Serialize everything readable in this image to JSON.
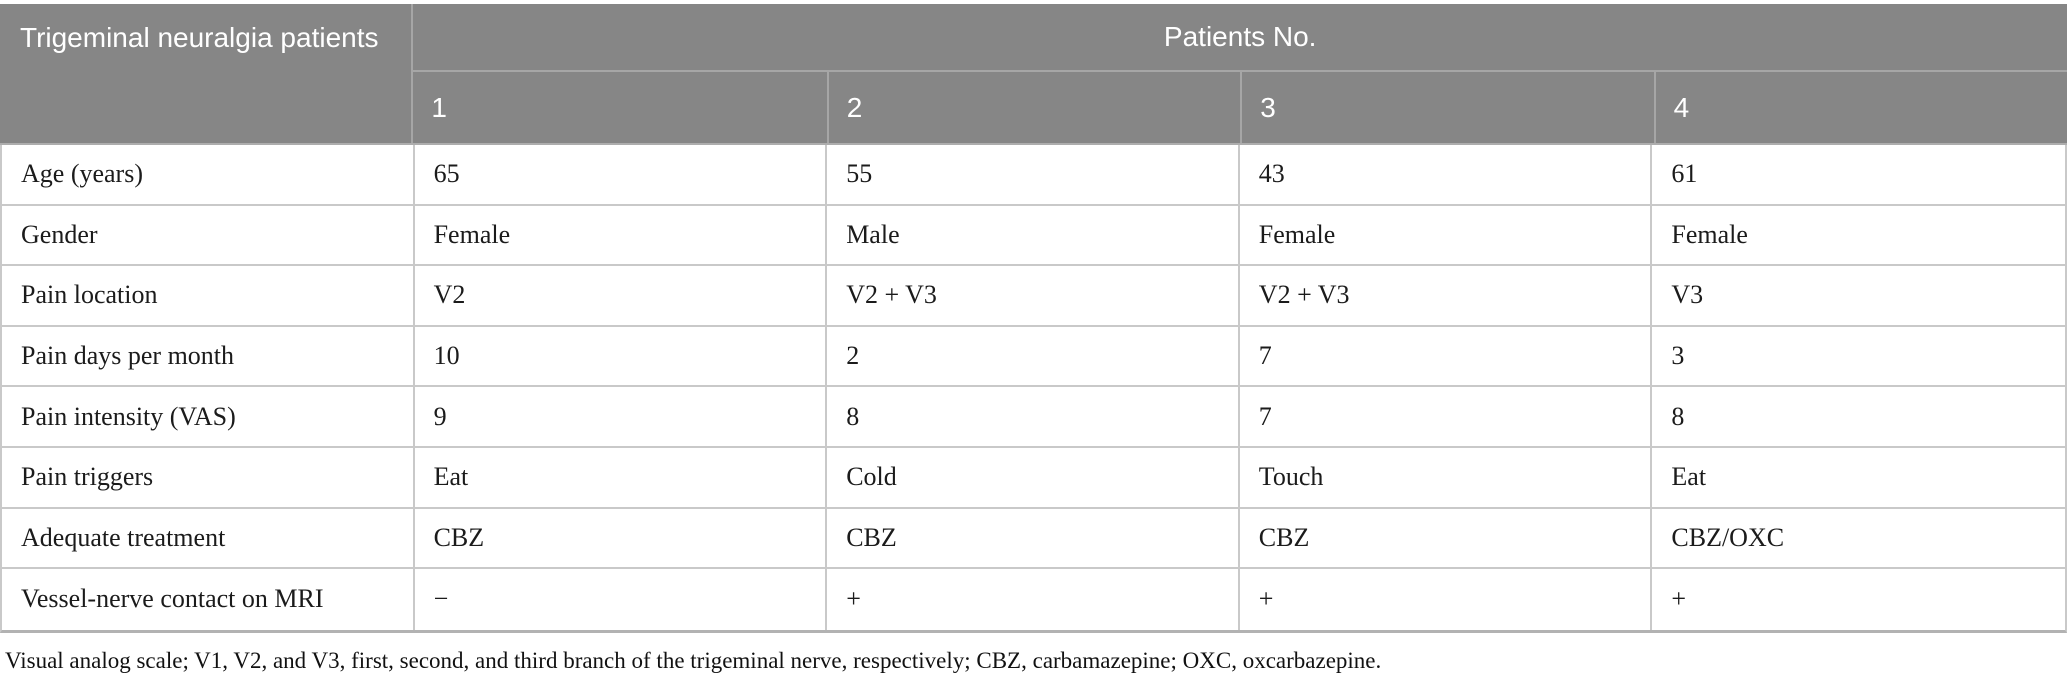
{
  "table": {
    "corner_header": "Trigeminal neuralgia patients",
    "span_header": "Patients No.",
    "patient_columns": [
      "1",
      "2",
      "3",
      "4"
    ],
    "rows": [
      {
        "label": "Age (years)",
        "values": [
          "65",
          "55",
          "43",
          "61"
        ]
      },
      {
        "label": "Gender",
        "values": [
          "Female",
          "Male",
          "Female",
          "Female"
        ]
      },
      {
        "label": "Pain location",
        "values": [
          "V2",
          "V2 + V3",
          "V2 + V3",
          "V3"
        ]
      },
      {
        "label": "Pain days per month",
        "values": [
          "10",
          "2",
          "7",
          "3"
        ]
      },
      {
        "label": "Pain intensity (VAS)",
        "values": [
          "9",
          "8",
          "7",
          "8"
        ]
      },
      {
        "label": "Pain triggers",
        "values": [
          "Eat",
          "Cold",
          "Touch",
          "Eat"
        ]
      },
      {
        "label": "Adequate treatment",
        "values": [
          "CBZ",
          "CBZ",
          "CBZ",
          "CBZ/OXC"
        ]
      },
      {
        "label": "Vessel-nerve contact on MRI",
        "values": [
          "−",
          "+",
          "+",
          "+"
        ]
      }
    ]
  },
  "footnote": "Visual analog scale; V1, V2, and V3, first, second, and third branch of the trigeminal nerve, respectively; CBZ, carbamazepine; OXC, oxcarbazepine.",
  "colors": {
    "header_bg": "#868686",
    "header_text": "#ffffff",
    "header_border": "#a6a6a6",
    "body_border": "#c9c9c9",
    "bottom_border": "#b2b2b2",
    "body_text": "#1b1b1b"
  }
}
